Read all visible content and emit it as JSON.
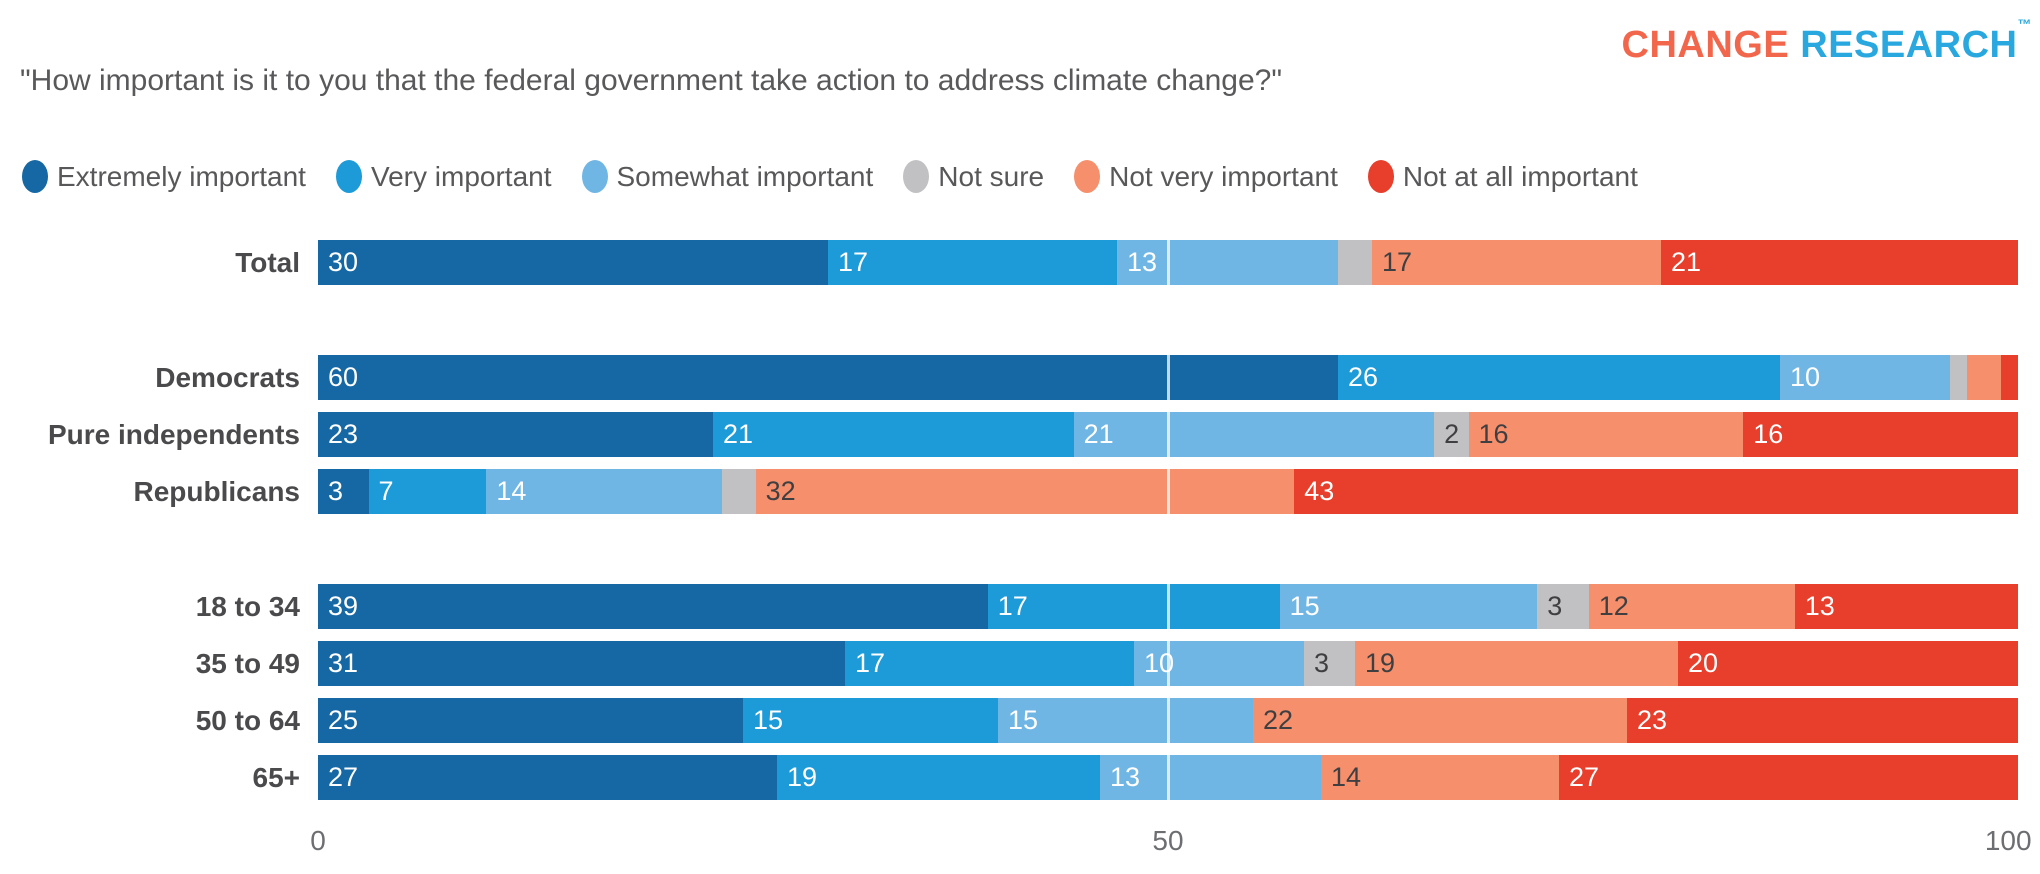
{
  "brand": {
    "part1": "CHANGE",
    "part2": "RESEARCH",
    "tm": "™",
    "color1": "#F2674C",
    "color2": "#29A8DF"
  },
  "title": "\"How important is it to you that the federal government take action to address climate change?\"",
  "chart_data": {
    "type": "bar",
    "orientation": "horizontal-stacked",
    "title": "\"How important is it to you that the federal government take action to address climate change?\"",
    "legend_position": "top",
    "legend": [
      {
        "label": "Extremely important",
        "color": "#1568A3"
      },
      {
        "label": "Very important",
        "color": "#1D9BD8"
      },
      {
        "label": "Somewhat important",
        "color": "#70B6E4"
      },
      {
        "label": "Not sure",
        "color": "#C1C1C3"
      },
      {
        "label": "Not very important",
        "color": "#F58F6C"
      },
      {
        "label": "Not at all important",
        "color": "#E83E2C"
      }
    ],
    "label_colors": [
      "#ffffff",
      "#ffffff",
      "#ffffff",
      "#3f3f41",
      "#3f3f41",
      "#ffffff"
    ],
    "x_axis": {
      "min": 0,
      "max": 100,
      "gridline_at": 50,
      "ticks": [
        {
          "value": 0,
          "label": "0"
        },
        {
          "value": 50,
          "label": "50"
        },
        {
          "value": 100,
          "label": "100"
        }
      ]
    },
    "groups": [
      {
        "rows": [
          {
            "label": "Total",
            "values": [
              30,
              17,
              13,
              2,
              17,
              21
            ],
            "labels": [
              "30",
              "17",
              "13",
              "",
              "17",
              "21"
            ]
          }
        ]
      },
      {
        "rows": [
          {
            "label": "Democrats",
            "values": [
              60,
              26,
              10,
              1,
              2,
              1
            ],
            "labels": [
              "60",
              "26",
              "10",
              "",
              "",
              ""
            ]
          },
          {
            "label": "Pure independents",
            "values": [
              23,
              21,
              21,
              2,
              16,
              16
            ],
            "labels": [
              "23",
              "21",
              "21",
              "2",
              "16",
              "16"
            ]
          },
          {
            "label": "Republicans",
            "values": [
              3,
              7,
              14,
              2,
              32,
              43
            ],
            "labels": [
              "3",
              "7",
              "14",
              "",
              "32",
              "43"
            ]
          }
        ]
      },
      {
        "rows": [
          {
            "label": "18 to 34",
            "values": [
              39,
              17,
              15,
              3,
              12,
              13
            ],
            "labels": [
              "39",
              "17",
              "15",
              "3",
              "12",
              "13"
            ]
          },
          {
            "label": "35 to 49",
            "values": [
              31,
              17,
              10,
              3,
              19,
              20
            ],
            "labels": [
              "31",
              "17",
              "10",
              "3",
              "19",
              "20"
            ]
          },
          {
            "label": "50 to 64",
            "values": [
              25,
              15,
              15,
              0,
              22,
              23
            ],
            "labels": [
              "25",
              "15",
              "15",
              "",
              "22",
              "23"
            ]
          },
          {
            "label": "65+",
            "values": [
              27,
              19,
              13,
              0,
              14,
              27
            ],
            "labels": [
              "27",
              "19",
              "13",
              "",
              "14",
              "27"
            ]
          }
        ]
      }
    ]
  }
}
